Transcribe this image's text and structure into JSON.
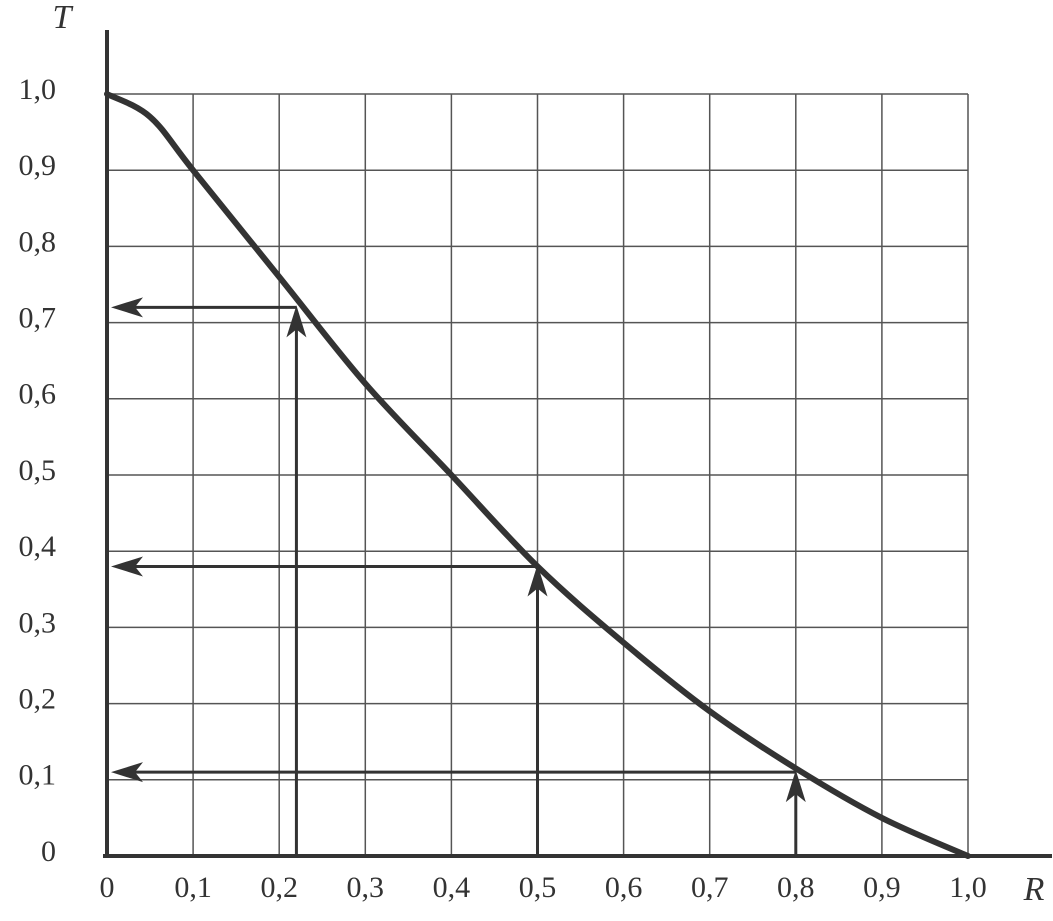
{
  "chart_data": {
    "type": "line",
    "x_label": "R",
    "y_label": "T",
    "x": [
      0,
      0.05,
      0.1,
      0.2,
      0.3,
      0.4,
      0.5,
      0.6,
      0.7,
      0.8,
      0.9,
      1.0
    ],
    "values": [
      1.0,
      0.97,
      0.9,
      0.76,
      0.62,
      0.5,
      0.38,
      0.28,
      0.19,
      0.115,
      0.05,
      0
    ],
    "color": "#333333",
    "arrows": [
      {
        "x": 0.22,
        "y": 0.72
      },
      {
        "x": 0.5,
        "y": 0.38
      },
      {
        "x": 0.8,
        "y": 0.11
      }
    ],
    "xlim": [
      0,
      1.0
    ],
    "ylim": [
      0,
      1.0
    ],
    "xticks": [
      0,
      {
        "value": 0.1,
        "label": "0,1"
      },
      {
        "value": 0.2,
        "label": "0,2"
      },
      {
        "value": 0.3,
        "label": "0,3"
      },
      {
        "value": 0.4,
        "label": "0,4"
      },
      {
        "value": 0.5,
        "label": "0,5"
      },
      {
        "value": 0.6,
        "label": "0,6"
      },
      {
        "value": 0.7,
        "label": "0,7"
      },
      {
        "value": 0.8,
        "label": "0,8"
      },
      {
        "value": 0.9,
        "label": "0,9"
      },
      {
        "value": 1.0,
        "label": "1,0"
      }
    ],
    "yticks": [
      0,
      {
        "value": 0.1,
        "label": "0,1"
      },
      {
        "value": 0.2,
        "label": "0,2"
      },
      {
        "value": 0.3,
        "label": "0,3"
      },
      {
        "value": 0.4,
        "label": "0,4"
      },
      {
        "value": 0.5,
        "label": "0,5"
      },
      {
        "value": 0.6,
        "label": "0,6"
      },
      {
        "value": 0.7,
        "label": "0,7"
      },
      {
        "value": 0.8,
        "label": "0,8"
      },
      {
        "value": 0.9,
        "label": "0,9"
      },
      {
        "value": 1.0,
        "label": "1,0"
      }
    ],
    "grid": true
  }
}
